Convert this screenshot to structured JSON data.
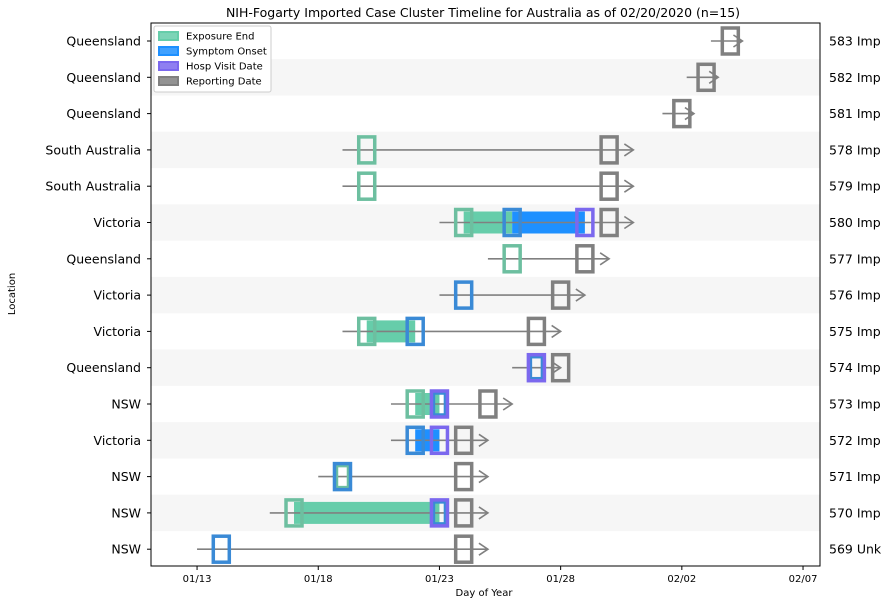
{
  "chart_data": {
    "type": "timeline",
    "title": "NIH-Fogarty Imported Case Cluster Timeline for Australia as of 02/20/2020 (n=15)",
    "xlabel": "Day of Year",
    "ylabel": "Location",
    "x_ticks": [
      {
        "day": 13,
        "label": "01/13"
      },
      {
        "day": 18,
        "label": "01/18"
      },
      {
        "day": 23,
        "label": "01/23"
      },
      {
        "day": 28,
        "label": "01/28"
      },
      {
        "day": 33,
        "label": "02/02"
      },
      {
        "day": 38,
        "label": "02/07"
      }
    ],
    "xlim": [
      11.1,
      38.7
    ],
    "legend": {
      "position": "top-left",
      "items": [
        {
          "label": "Exposure End",
          "color": "#66cdaa"
        },
        {
          "label": "Symptom Onset",
          "color": "#1e90ff"
        },
        {
          "label": "Hosp Visit Date",
          "color": "#7b68ee"
        },
        {
          "label": "Reporting Date",
          "color": "#808080"
        }
      ]
    },
    "colors": {
      "exposure": "#66cdaa",
      "exposure_edge": "#6dbfa0",
      "symptom": "#1e90ff",
      "symptom_edge": "#3a8ad6",
      "hosp": "#7b68ee",
      "reporting": "#808080",
      "line": "#808080",
      "stripe": "#f6f6f6"
    },
    "rows": [
      {
        "location": "Queensland",
        "case": "583 Imp",
        "line_start": 34.2,
        "line_end": 35.5,
        "markers": {
          "reporting": 35.0
        },
        "bars": []
      },
      {
        "location": "Queensland",
        "case": "582 Imp",
        "line_start": 33.2,
        "line_end": 34.5,
        "markers": {
          "reporting": 34.0
        },
        "bars": []
      },
      {
        "location": "Queensland",
        "case": "581 Imp",
        "line_start": 32.2,
        "line_end": 33.5,
        "markers": {
          "reporting": 33.0
        },
        "bars": []
      },
      {
        "location": "South Australia",
        "case": "578 Imp",
        "line_start": 19.0,
        "line_end": 31.0,
        "markers": {
          "exposure": 20.0,
          "reporting": 30.0
        },
        "bars": []
      },
      {
        "location": "South Australia",
        "case": "579 Imp",
        "line_start": 19.0,
        "line_end": 31.0,
        "markers": {
          "exposure": 20.0,
          "reporting": 30.0
        },
        "bars": []
      },
      {
        "location": "Victoria",
        "case": "580 Imp",
        "line_start": 23.0,
        "line_end": 31.0,
        "markers": {
          "exposure": 24.0,
          "symptom": 26.0,
          "hosp": 29.0,
          "reporting": 30.0
        },
        "bars": [
          {
            "type": "exposure",
            "start": 24.0,
            "end": 26.0
          },
          {
            "type": "symptom",
            "start": 26.0,
            "end": 29.0
          }
        ]
      },
      {
        "location": "Queensland",
        "case": "577 Imp",
        "line_start": 25.0,
        "line_end": 30.0,
        "markers": {
          "exposure": 26.0,
          "reporting": 29.0
        },
        "bars": []
      },
      {
        "location": "Victoria",
        "case": "576 Imp",
        "line_start": 23.0,
        "line_end": 29.0,
        "markers": {
          "symptom": 24.0,
          "reporting": 28.0
        },
        "bars": []
      },
      {
        "location": "Victoria",
        "case": "575 Imp",
        "line_start": 19.0,
        "line_end": 28.0,
        "markers": {
          "exposure": 20.0,
          "symptom": 22.0,
          "reporting": 27.0
        },
        "bars": [
          {
            "type": "exposure",
            "start": 20.0,
            "end": 22.0
          }
        ]
      },
      {
        "location": "Queensland",
        "case": "574 Imp",
        "line_start": 26.0,
        "line_end": 28.0,
        "markers": {
          "symptom": 27.0,
          "hosp": 27.0,
          "reporting": 28.0
        },
        "bars": []
      },
      {
        "location": "NSW",
        "case": "573 Imp",
        "line_start": 21.0,
        "line_end": 26.0,
        "markers": {
          "exposure": 22.0,
          "symptom": 23.0,
          "hosp": 23.0,
          "reporting": 25.0
        },
        "bars": [
          {
            "type": "exposure",
            "start": 22.0,
            "end": 23.0
          }
        ]
      },
      {
        "location": "Victoria",
        "case": "572 Imp",
        "line_start": 21.0,
        "line_end": 25.0,
        "markers": {
          "symptom": 22.0,
          "hosp": 23.0,
          "reporting": 24.0
        },
        "bars": [
          {
            "type": "symptom",
            "start": 22.0,
            "end": 23.0
          }
        ]
      },
      {
        "location": "NSW",
        "case": "571 Imp",
        "line_start": 18.0,
        "line_end": 25.0,
        "markers": {
          "exposure": 19.0,
          "symptom": 19.0,
          "reporting": 24.0
        },
        "bars": []
      },
      {
        "location": "NSW",
        "case": "570 Imp",
        "line_start": 16.0,
        "line_end": 25.0,
        "markers": {
          "exposure": 17.0,
          "symptom": 23.0,
          "hosp": 23.0,
          "reporting": 24.0
        },
        "bars": [
          {
            "type": "exposure",
            "start": 17.0,
            "end": 23.0
          }
        ]
      },
      {
        "location": "NSW",
        "case": "569 Unk",
        "line_start": 13.0,
        "line_end": 25.0,
        "markers": {
          "symptom": 14.0,
          "reporting": 24.0
        },
        "bars": []
      }
    ]
  }
}
